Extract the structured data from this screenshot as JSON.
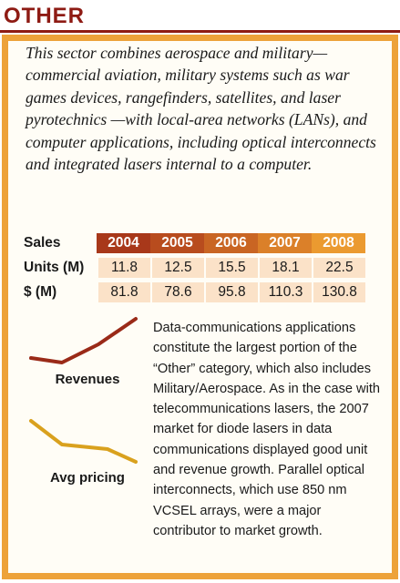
{
  "header": {
    "title": "OTHER"
  },
  "intro": "This sector combines aerospace and military—commercial aviation, military systems such as war games devices, rangefinders, satellites, and laser pyrotechnics —with local-area networks (LANs), and computer applications, including optical interconnects and integrated lasers internal to a computer.",
  "table": {
    "header": [
      "Sales",
      "2004",
      "2005",
      "2006",
      "2007",
      "2008"
    ],
    "rows": [
      [
        "Units (M)",
        "11.8",
        "12.5",
        "15.5",
        "18.1",
        "22.5"
      ],
      [
        "$ (M)",
        "81.8",
        "78.6",
        "95.8",
        "110.3",
        "130.8"
      ]
    ]
  },
  "trends": {
    "revenues": "Revenues",
    "pricing": "Avg pricing"
  },
  "body": "Data-communications applications constitute the largest portion of the “Other” category, which also includes Military/Aerospace. As in the case with telecommunications lasers, the 2007 market for diode lasers in data communications displayed good unit and revenue growth. Parallel optical interconnects, which use 850 nm VCSEL arrays, were a major contributor to market growth."
}
